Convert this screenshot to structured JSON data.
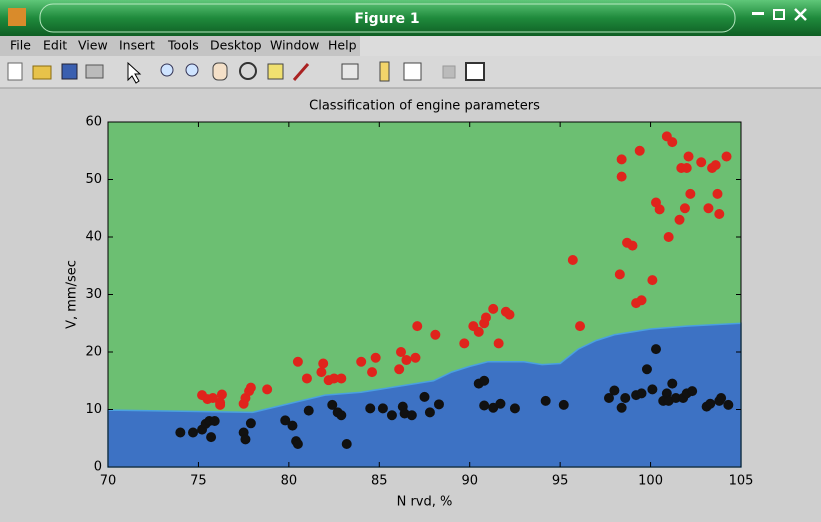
{
  "window": {
    "title": "Figure 1"
  },
  "menu": [
    "File",
    "Edit",
    "View",
    "Insert",
    "Tools",
    "Desktop",
    "Window",
    "Help"
  ],
  "chart_data": {
    "type": "scatter",
    "title": "Classification of engine parameters",
    "x_label": "N rvd, %",
    "y_label": "V, mm/sec",
    "xlim": [
      70,
      105
    ],
    "xticks": [
      70,
      75,
      80,
      85,
      90,
      95,
      100,
      105
    ],
    "ylim": [
      0,
      60
    ],
    "yticks": [
      0,
      10,
      20,
      30,
      40,
      50,
      60
    ],
    "background_color": "#6cbf72",
    "boundary": {
      "color": "#3d72c4",
      "x": [
        70,
        78,
        80,
        82,
        84,
        86,
        88,
        89,
        90,
        91,
        93,
        94,
        95,
        96,
        97,
        98,
        100,
        102,
        105
      ],
      "values": [
        9.9,
        9.5,
        11,
        12.5,
        13,
        14,
        15,
        16.5,
        17.5,
        18.3,
        18.3,
        17.8,
        18,
        20.5,
        22,
        23,
        24,
        24.5,
        25
      ]
    },
    "series": [
      {
        "color": "#e0241c",
        "x": [
          75.2,
          75.5,
          75.8,
          76.2,
          76.3,
          76.2,
          77.5,
          77.6,
          77.8,
          77.9,
          78.8,
          80.5,
          81,
          81.8,
          81.9,
          82.2,
          82.5,
          82.9,
          84,
          84.6,
          84.8,
          86.1,
          86.2,
          86.5,
          87,
          87.1,
          88.1,
          89.7,
          90.2,
          90.5,
          90.8,
          90.9,
          91.3,
          91.6,
          92,
          92.2,
          95.7,
          96.1,
          98.3,
          98.4,
          98.4,
          98.7,
          99,
          99.2,
          99.4,
          99.5,
          100.1,
          100.3,
          100.5,
          100.9,
          101,
          101.2,
          101.6,
          101.7,
          101.9,
          102,
          102.1,
          102.2,
          102.8,
          103.2,
          103.4,
          103.6,
          103.7,
          103.8,
          104.2
        ],
        "values": [
          12.5,
          11.8,
          12,
          11.2,
          12.6,
          10.8,
          11,
          12,
          13.2,
          13.8,
          13.5,
          18.3,
          15.4,
          16.5,
          18,
          15.1,
          15.4,
          15.4,
          18.3,
          16.5,
          19,
          17,
          20,
          18.6,
          19,
          24.5,
          23,
          21.5,
          24.5,
          23.5,
          25,
          26,
          27.5,
          21.5,
          27,
          26.5,
          36,
          24.5,
          33.5,
          53.5,
          50.5,
          39,
          38.5,
          28.5,
          55,
          29,
          32.5,
          46,
          44.8,
          57.5,
          40,
          56.5,
          43,
          52,
          45,
          52,
          54,
          47.5,
          53,
          45,
          52,
          52.5,
          47.5,
          44,
          54
        ]
      },
      {
        "color": "#111111",
        "x": [
          74,
          74.7,
          75.2,
          75.4,
          75.6,
          75.7,
          75.9,
          77.5,
          77.6,
          77.9,
          79.8,
          80.2,
          80.4,
          80.5,
          81.1,
          82.4,
          82.7,
          82.9,
          83.2,
          84.5,
          85.2,
          85.7,
          86.3,
          86.4,
          86.8,
          87.5,
          87.8,
          88.3,
          90.5,
          90.8,
          90.8,
          91.3,
          91.7,
          92.5,
          94.2,
          95.2,
          97.7,
          98,
          98.4,
          98.6,
          99.2,
          99.5,
          99.8,
          100.1,
          100.3,
          100.7,
          100.9,
          101,
          101.2,
          101.4,
          101.8,
          102,
          102.3,
          103.1,
          103.3,
          103.8,
          103.9,
          104.3
        ],
        "values": [
          6,
          6,
          6.5,
          7.5,
          8,
          5.2,
          8,
          6,
          4.8,
          7.6,
          8.1,
          7.2,
          4.5,
          4,
          9.8,
          10.8,
          9.5,
          9,
          4,
          10.2,
          10.2,
          9,
          10.5,
          9.3,
          9,
          12.2,
          9.5,
          10.9,
          14.5,
          15,
          10.7,
          10.3,
          11,
          10.2,
          11.5,
          10.8,
          12,
          13.3,
          10.3,
          12,
          12.5,
          12.8,
          17,
          13.5,
          20.5,
          11.5,
          12.8,
          11.5,
          14.5,
          12,
          12,
          12.8,
          13.2,
          10.5,
          11,
          11.5,
          12,
          10.8
        ]
      }
    ]
  }
}
